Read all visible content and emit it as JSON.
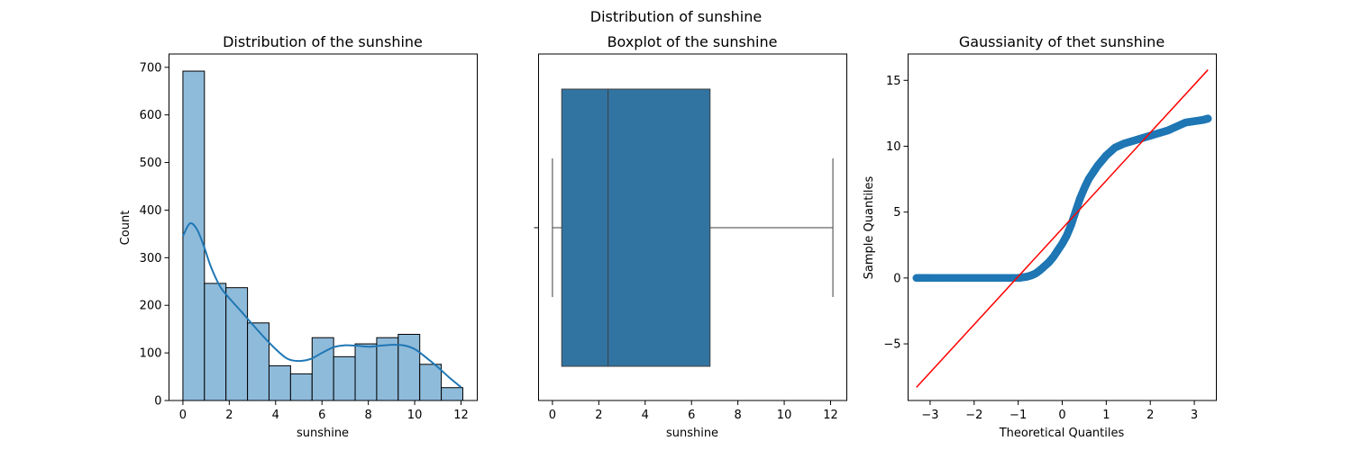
{
  "suptitle": "Distribution of sunshine",
  "chart_data": [
    {
      "type": "histogram",
      "title": "Distribution of the sunshine",
      "xlabel": "sunshine",
      "ylabel": "Count",
      "xlim": [
        -0.6,
        12.7
      ],
      "ylim": [
        0,
        728
      ],
      "xticks": [
        0,
        2,
        4,
        6,
        8,
        10,
        12
      ],
      "yticks": [
        0,
        100,
        200,
        300,
        400,
        500,
        600,
        700
      ],
      "bin_edges": [
        0,
        0.929,
        1.858,
        2.787,
        3.716,
        4.645,
        5.574,
        6.503,
        7.432,
        8.361,
        9.29,
        10.219,
        11.148,
        12.077
      ],
      "values": [
        692,
        246,
        237,
        163,
        73,
        56,
        132,
        92,
        119,
        132,
        139,
        76,
        27
      ],
      "kde": {
        "x": [
          0,
          0.3,
          0.6,
          0.9,
          1.2,
          1.6,
          2.0,
          2.5,
          3.0,
          3.5,
          4.0,
          4.5,
          5.0,
          5.5,
          6.0,
          6.5,
          7.0,
          7.5,
          8.0,
          8.5,
          9.0,
          9.5,
          10.0,
          10.5,
          11.0,
          11.5,
          12.0
        ],
        "y": [
          345,
          372,
          360,
          325,
          282,
          240,
          215,
          188,
          160,
          133,
          108,
          88,
          83,
          87,
          100,
          112,
          116,
          115,
          113,
          115,
          117,
          116,
          108,
          90,
          70,
          48,
          28
        ]
      }
    },
    {
      "type": "boxplot",
      "title": "Boxplot of the sunshine",
      "xlabel": "sunshine",
      "xlim": [
        -0.6,
        12.7
      ],
      "xticks": [
        0,
        2,
        4,
        6,
        8,
        10,
        12
      ],
      "min": 0.0,
      "q1": 0.4,
      "median": 2.4,
      "q3": 6.8,
      "max": 12.1,
      "color": "#3274a1"
    },
    {
      "type": "scatter",
      "title": "Gaussianity of thet  sunshine",
      "xlabel": "Theoretical Quantiles",
      "ylabel": "Sample Quantiles",
      "xlim": [
        -3.5,
        3.5
      ],
      "ylim": [
        -9.3,
        17
      ],
      "xticks": [
        -3,
        -2,
        -1,
        0,
        1,
        2,
        3
      ],
      "yticks": [
        -5,
        0,
        5,
        10,
        15
      ],
      "reference_line": {
        "x": [
          -3.31,
          3.31
        ],
        "y": [
          -8.3,
          15.8
        ],
        "color": "#ff0000"
      },
      "point_color": "#1f77b4",
      "qq_curve": {
        "x": [
          -3.31,
          -3.0,
          -2.5,
          -2.0,
          -1.5,
          -1.0,
          -0.9,
          -0.8,
          -0.7,
          -0.6,
          -0.5,
          -0.4,
          -0.3,
          -0.2,
          -0.1,
          0.0,
          0.1,
          0.2,
          0.3,
          0.4,
          0.5,
          0.6,
          0.7,
          0.8,
          0.9,
          1.0,
          1.2,
          1.4,
          1.6,
          1.8,
          2.0,
          2.2,
          2.4,
          2.6,
          2.8,
          3.0,
          3.2,
          3.31
        ],
        "y": [
          0.0,
          0.0,
          0.0,
          0.0,
          0.0,
          0.0,
          0.05,
          0.1,
          0.2,
          0.35,
          0.6,
          0.9,
          1.2,
          1.6,
          2.1,
          2.6,
          3.2,
          4.0,
          5.0,
          6.0,
          6.8,
          7.5,
          8.0,
          8.5,
          8.9,
          9.3,
          9.9,
          10.2,
          10.4,
          10.6,
          10.8,
          11.0,
          11.2,
          11.5,
          11.8,
          11.9,
          12.0,
          12.1
        ]
      }
    }
  ]
}
